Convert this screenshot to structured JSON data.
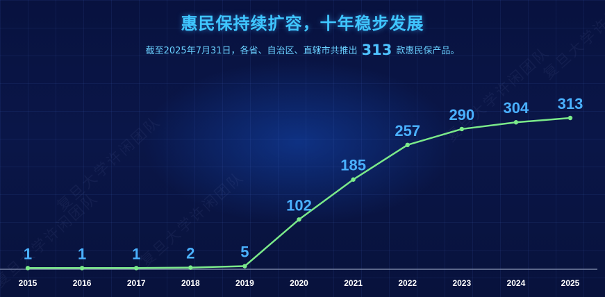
{
  "header": {
    "title": "惠民保持续扩容，十年稳步发展",
    "subtitle_prefix": "截至2025年7月31日，各省、自治区、直辖市共推出",
    "subtitle_value": "313",
    "subtitle_suffix": "款惠民保产品。"
  },
  "watermark": "复旦大学许闲团队",
  "colors": {
    "line": "#7bea8a",
    "label": "#4ab0ff",
    "axis": "#8c97b8",
    "tick_text": "#ffffff"
  },
  "chart_data": {
    "type": "line",
    "title": "惠民保持续扩容，十年稳步发展",
    "xlabel": "",
    "ylabel": "",
    "categories": [
      "2015",
      "2016",
      "2017",
      "2018",
      "2019",
      "2020",
      "2021",
      "2022",
      "2023",
      "2024",
      "2025"
    ],
    "series": [
      {
        "values": [
          1,
          1,
          1,
          2,
          5,
          102,
          185,
          257,
          290,
          304,
          313
        ]
      }
    ],
    "ylim": [
      0,
      313
    ],
    "grid": false,
    "legend": "none",
    "data_labels": true
  }
}
